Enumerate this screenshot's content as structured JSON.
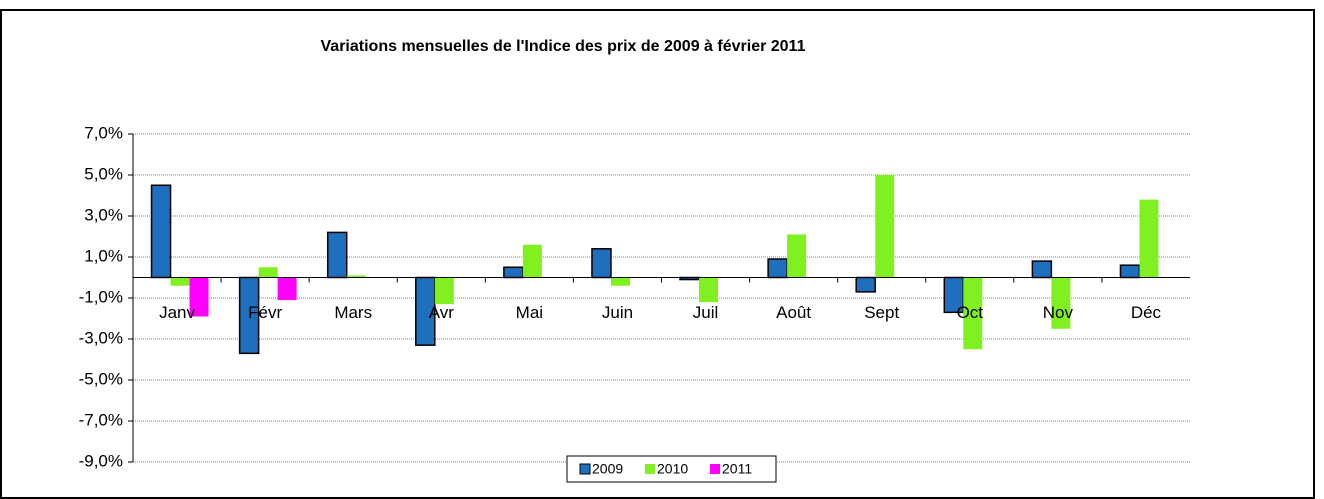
{
  "chart_data": {
    "type": "bar",
    "title": "Variations mensuelles de l'Indice des prix de 2009 à  février 2011",
    "categories": [
      "Janv",
      "Févr",
      "Mars",
      "Avr",
      "Mai",
      "Juin",
      "Juil",
      "Août",
      "Sept",
      "Oct",
      "Nov",
      "Déc"
    ],
    "series": [
      {
        "name": "2009",
        "color": "#1f6fbf",
        "values": [
          4.5,
          -3.7,
          2.2,
          -3.3,
          0.5,
          1.4,
          -0.1,
          0.9,
          -0.7,
          -1.7,
          0.8,
          0.6
        ]
      },
      {
        "name": "2010",
        "color": "#80f020",
        "values": [
          -0.4,
          0.5,
          0.1,
          -1.3,
          1.6,
          -0.4,
          -1.2,
          2.1,
          5.0,
          -3.5,
          -2.5,
          3.8
        ]
      },
      {
        "name": "2011",
        "color": "#ff00ff",
        "values": [
          -1.9,
          -1.1,
          null,
          null,
          null,
          null,
          null,
          null,
          null,
          null,
          null,
          null
        ]
      }
    ],
    "ylim": [
      -9,
      7
    ],
    "yticks": [
      {
        "value": 7,
        "label": "7,0%"
      },
      {
        "value": 5,
        "label": "5,0%"
      },
      {
        "value": 3,
        "label": "3,0%"
      },
      {
        "value": 1,
        "label": "1,0%"
      },
      {
        "value": -1,
        "label": "-1,0%"
      },
      {
        "value": -3,
        "label": "-3,0%"
      },
      {
        "value": -5,
        "label": "-5,0%"
      },
      {
        "value": -7,
        "label": "-7,0%"
      },
      {
        "value": -9,
        "label": "-9,0%"
      }
    ],
    "grid": true,
    "legend": "bottom"
  }
}
